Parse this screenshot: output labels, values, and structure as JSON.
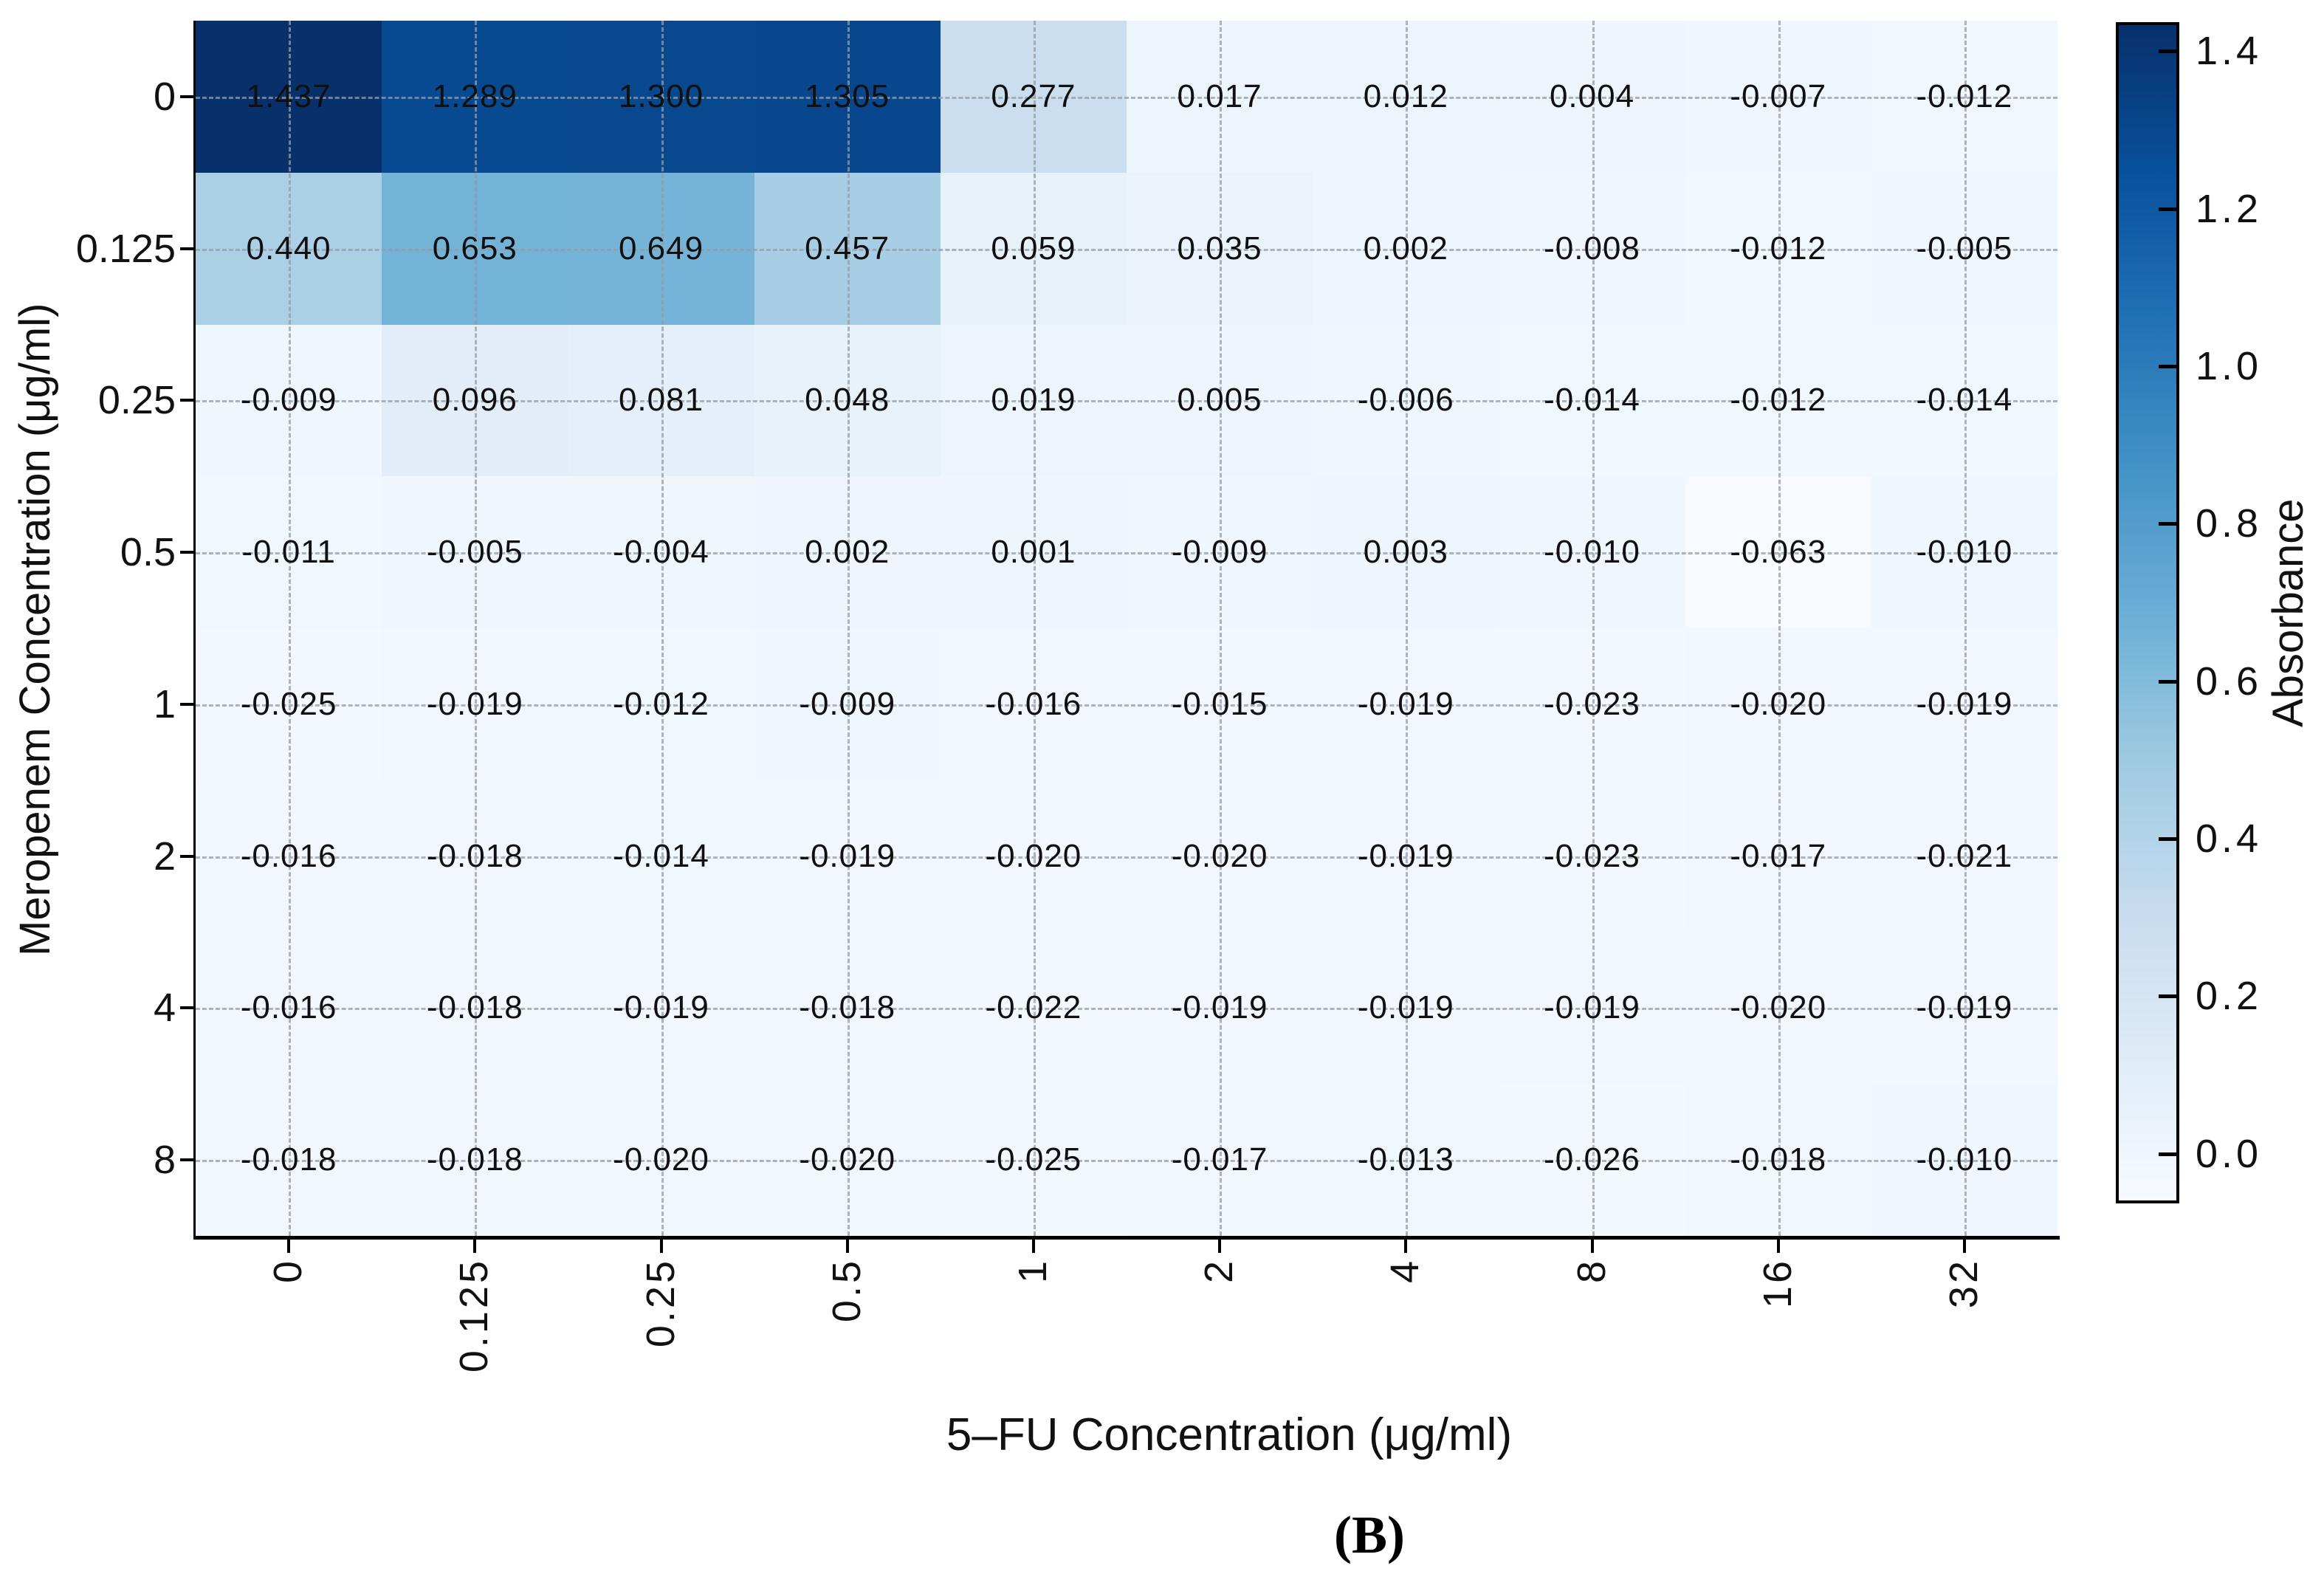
{
  "figure": {
    "caption": "(B)",
    "x_axis": {
      "label": "5–FU Concentration (μg/ml)",
      "ticks": [
        "0",
        "0.125",
        "0.25",
        "0.5",
        "1",
        "2",
        "4",
        "8",
        "16",
        "32"
      ]
    },
    "y_axis": {
      "label": "Meropenem Concentration (μg/ml)",
      "ticks": [
        "0",
        "0.125",
        "0.25",
        "0.5",
        "1",
        "2",
        "4",
        "8"
      ]
    },
    "colorbar": {
      "label": "Absorbance",
      "ticks": [
        "1.4",
        "1.2",
        "1.0",
        "0.8",
        "0.6",
        "0.4",
        "0.2",
        "0.0"
      ]
    }
  },
  "chart_data": {
    "type": "heatmap",
    "title": "",
    "xlabel": "5–FU Concentration (μg/ml)",
    "ylabel": "Meropenem Concentration (μg/ml)",
    "colorbar_label": "Absorbance",
    "colormap": "Blues",
    "grid": "dashed",
    "vmin": -0.063,
    "vmax": 1.437,
    "value_format_decimals": 3,
    "x_categories": [
      "0",
      "0.125",
      "0.25",
      "0.5",
      "1",
      "2",
      "4",
      "8",
      "16",
      "32"
    ],
    "y_categories": [
      "0",
      "0.125",
      "0.25",
      "0.5",
      "1",
      "2",
      "4",
      "8"
    ],
    "values": [
      [
        1.437,
        1.289,
        1.3,
        1.305,
        0.277,
        0.017,
        0.012,
        0.004,
        -0.007,
        -0.012
      ],
      [
        0.44,
        0.653,
        0.649,
        0.457,
        0.059,
        0.035,
        0.002,
        -0.008,
        -0.012,
        -0.005
      ],
      [
        -0.009,
        0.096,
        0.081,
        0.048,
        0.019,
        0.005,
        -0.006,
        -0.014,
        -0.012,
        -0.014
      ],
      [
        -0.011,
        -0.005,
        -0.004,
        0.002,
        0.001,
        -0.009,
        0.003,
        -0.01,
        -0.063,
        -0.01
      ],
      [
        -0.025,
        -0.019,
        -0.012,
        -0.009,
        -0.016,
        -0.015,
        -0.019,
        -0.023,
        -0.02,
        -0.019
      ],
      [
        -0.016,
        -0.018,
        -0.014,
        -0.019,
        -0.02,
        -0.02,
        -0.019,
        -0.023,
        -0.017,
        -0.021
      ],
      [
        -0.016,
        -0.018,
        -0.019,
        -0.018,
        -0.022,
        -0.019,
        -0.019,
        -0.019,
        -0.02,
        -0.019
      ],
      [
        -0.018,
        -0.018,
        -0.02,
        -0.02,
        -0.025,
        -0.017,
        -0.013,
        -0.026,
        -0.018,
        -0.01
      ]
    ],
    "colorbar_ticks": [
      1.4,
      1.2,
      1.0,
      0.8,
      0.6,
      0.4,
      0.2,
      0.0
    ]
  },
  "colors": {
    "spine": "#000000",
    "gridline": "#969ca3",
    "cell_text": "#101010",
    "colormap_dark_end": "#08306b",
    "colormap_light_end": "#f7fbff"
  }
}
